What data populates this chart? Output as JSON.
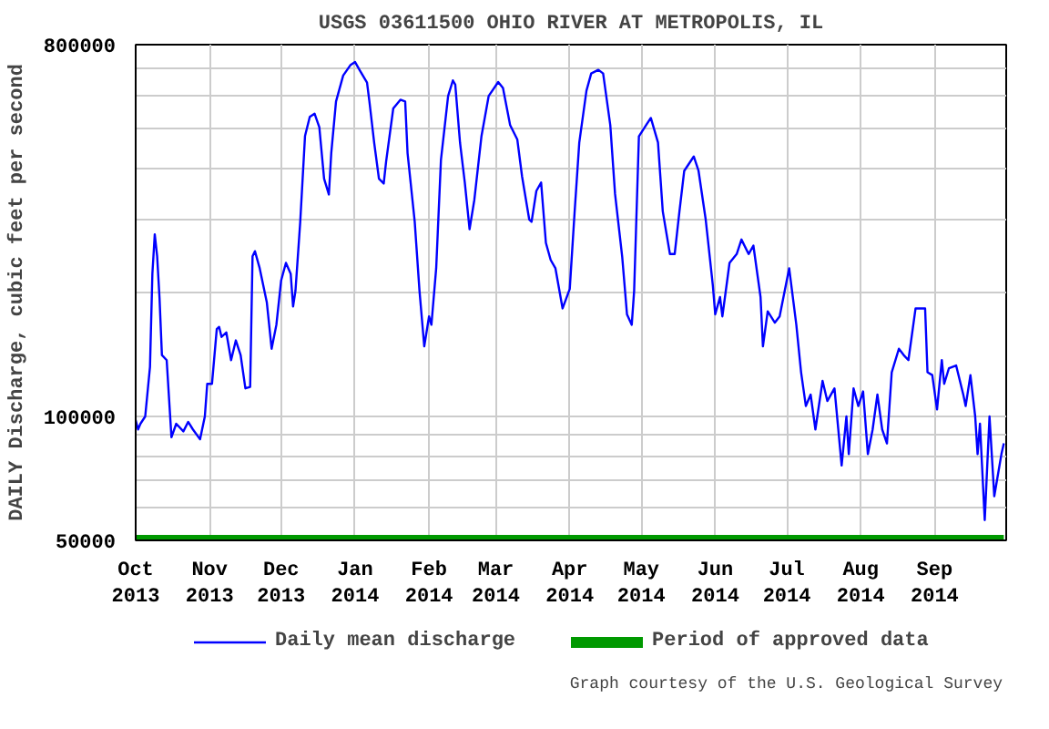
{
  "chart_data": {
    "type": "line",
    "title": "USGS 03611500 OHIO RIVER AT METROPOLIS, IL",
    "ylabel": "DAILY Discharge, cubic feet per second",
    "annotations": [
      "Graph courtesy of the U.S. Geological Survey"
    ],
    "log": "y",
    "grid": true,
    "legend": "bottom",
    "marker": "none",
    "line_style": "solid",
    "xlim": [
      "2013-10-01",
      "2014-10-01"
    ],
    "xticks": [
      {
        "value": "2013-10-01",
        "label": "Oct\n2013"
      },
      {
        "value": "2013-11-01",
        "label": "Nov\n2013"
      },
      {
        "value": "2013-12-01",
        "label": "Dec\n2013"
      },
      {
        "value": "2014-01-01",
        "label": "Jan\n2014"
      },
      {
        "value": "2014-02-01",
        "label": "Feb\n2014"
      },
      {
        "value": "2014-03-01",
        "label": "Mar\n2014"
      },
      {
        "value": "2014-04-01",
        "label": "Apr\n2014"
      },
      {
        "value": "2014-05-01",
        "label": "May\n2014"
      },
      {
        "value": "2014-06-01",
        "label": "Jun\n2014"
      },
      {
        "value": "2014-07-01",
        "label": "Jul\n2014"
      },
      {
        "value": "2014-08-01",
        "label": "Aug\n2014"
      },
      {
        "value": "2014-09-01",
        "label": "Sep\n2014"
      }
    ],
    "ylim": [
      50000,
      800000
    ],
    "yticks": [
      50000,
      {
        "value": 60000,
        "label": null
      },
      {
        "value": 70000,
        "label": null
      },
      {
        "value": 80000,
        "label": null
      },
      {
        "value": 90000,
        "label": null
      },
      100000,
      {
        "value": 200000,
        "label": null
      },
      {
        "value": 300000,
        "label": null
      },
      {
        "value": 400000,
        "label": null
      },
      {
        "value": 500000,
        "label": null
      },
      {
        "value": 600000,
        "label": null
      },
      {
        "value": 700000,
        "label": null
      },
      800000
    ],
    "series": [
      {
        "name": "Daily mean discharge",
        "color": "#0000ff",
        "x": [
          "2013-10-01",
          "2013-10-02",
          "2013-10-03",
          "2013-10-05",
          "2013-10-07",
          "2013-10-08",
          "2013-10-09",
          "2013-10-10",
          "2013-10-11",
          "2013-10-12",
          "2013-10-14",
          "2013-10-16",
          "2013-10-18",
          "2013-10-21",
          "2013-10-23",
          "2013-10-25",
          "2013-10-28",
          "2013-10-30",
          "2013-10-31",
          "2013-11-02",
          "2013-11-04",
          "2013-11-05",
          "2013-11-06",
          "2013-11-08",
          "2013-11-10",
          "2013-11-12",
          "2013-11-14",
          "2013-11-16",
          "2013-11-18",
          "2013-11-19",
          "2013-11-20",
          "2013-11-22",
          "2013-11-25",
          "2013-11-27",
          "2013-11-29",
          "2013-12-01",
          "2013-12-03",
          "2013-12-05",
          "2013-12-06",
          "2013-12-07",
          "2013-12-09",
          "2013-12-11",
          "2013-12-13",
          "2013-12-15",
          "2013-12-17",
          "2013-12-19",
          "2013-12-21",
          "2013-12-22",
          "2013-12-24",
          "2013-12-27",
          "2013-12-30",
          "2014-01-01",
          "2014-01-03",
          "2014-01-06",
          "2014-01-07",
          "2014-01-09",
          "2014-01-11",
          "2014-01-13",
          "2014-01-14",
          "2014-01-17",
          "2014-01-20",
          "2014-01-22",
          "2014-01-23",
          "2014-01-26",
          "2014-01-28",
          "2014-01-30",
          "2014-02-01",
          "2014-02-02",
          "2014-02-04",
          "2014-02-06",
          "2014-02-09",
          "2014-02-11",
          "2014-02-12",
          "2014-02-14",
          "2014-02-16",
          "2014-02-18",
          "2014-02-20",
          "2014-02-23",
          "2014-02-26",
          "2014-03-02",
          "2014-03-04",
          "2014-03-07",
          "2014-03-10",
          "2014-03-12",
          "2014-03-15",
          "2014-03-16",
          "2014-03-18",
          "2014-03-20",
          "2014-03-22",
          "2014-03-24",
          "2014-03-26",
          "2014-03-29",
          "2014-04-01",
          "2014-04-03",
          "2014-04-05",
          "2014-04-08",
          "2014-04-10",
          "2014-04-13",
          "2014-04-15",
          "2014-04-18",
          "2014-04-20",
          "2014-04-23",
          "2014-04-25",
          "2014-04-27",
          "2014-04-28",
          "2014-04-30",
          "2014-05-03",
          "2014-05-05",
          "2014-05-08",
          "2014-05-10",
          "2014-05-13",
          "2014-05-15",
          "2014-05-17",
          "2014-05-19",
          "2014-05-23",
          "2014-05-25",
          "2014-05-28",
          "2014-05-31",
          "2014-06-01",
          "2014-06-03",
          "2014-06-04",
          "2014-06-07",
          "2014-06-10",
          "2014-06-12",
          "2014-06-15",
          "2014-06-17",
          "2014-06-20",
          "2014-06-21",
          "2014-06-23",
          "2014-06-26",
          "2014-06-28",
          "2014-07-02",
          "2014-07-05",
          "2014-07-07",
          "2014-07-09",
          "2014-07-11",
          "2014-07-13",
          "2014-07-16",
          "2014-07-18",
          "2014-07-21",
          "2014-07-24",
          "2014-07-26",
          "2014-07-27",
          "2014-07-29",
          "2014-07-31",
          "2014-08-02",
          "2014-08-04",
          "2014-08-06",
          "2014-08-08",
          "2014-08-10",
          "2014-08-12",
          "2014-08-14",
          "2014-08-17",
          "2014-08-19",
          "2014-08-21",
          "2014-08-24",
          "2014-08-28",
          "2014-08-29",
          "2014-08-31",
          "2014-09-02",
          "2014-09-04",
          "2014-09-05",
          "2014-09-07",
          "2014-09-10",
          "2014-09-13",
          "2014-09-14",
          "2014-09-16",
          "2014-09-18",
          "2014-09-19",
          "2014-09-20",
          "2014-09-22",
          "2014-09-24",
          "2014-09-26",
          "2014-09-29",
          "2014-09-30"
        ],
        "values": [
          98000,
          93000,
          96000,
          100000,
          132000,
          222000,
          277000,
          245000,
          194000,
          141000,
          137000,
          89000,
          96000,
          92000,
          97000,
          93000,
          88000,
          100000,
          120000,
          120000,
          163000,
          165000,
          156000,
          160000,
          137000,
          153000,
          141000,
          117000,
          118000,
          245000,
          252000,
          229000,
          189000,
          146000,
          167000,
          214000,
          236000,
          222000,
          185000,
          202000,
          297000,
          480000,
          534000,
          544000,
          504000,
          378000,
          346000,
          436000,
          582000,
          673000,
          713000,
          726000,
          692000,
          647000,
          582000,
          462000,
          378000,
          368000,
          416000,
          560000,
          588000,
          582000,
          436000,
          297000,
          202000,
          148000,
          175000,
          167000,
          229000,
          420000,
          600000,
          655000,
          640000,
          462000,
          370000,
          285000,
          336000,
          480000,
          600000,
          649000,
          628000,
          510000,
          471000,
          383000,
          301000,
          297000,
          353000,
          370000,
          264000,
          240000,
          229000,
          183000,
          204000,
          311000,
          463000,
          618000,
          681000,
          695000,
          681000,
          510000,
          347000,
          244000,
          177000,
          167000,
          202000,
          479000,
          510000,
          531000,
          463000,
          315000,
          248000,
          248000,
          315000,
          395000,
          428000,
          395000,
          301000,
          208000,
          177000,
          195000,
          175000,
          236000,
          248000,
          269000,
          248000,
          260000,
          195000,
          148000,
          180000,
          169000,
          175000,
          229000,
          167000,
          128000,
          106000,
          113000,
          93000,
          122000,
          109000,
          117000,
          76000,
          100000,
          81000,
          117000,
          106000,
          115000,
          81000,
          93000,
          113000,
          93000,
          86000,
          128000,
          146000,
          141000,
          137000,
          183000,
          183000,
          128000,
          126000,
          104000,
          137000,
          120000,
          131000,
          133000,
          113000,
          106000,
          126000,
          100000,
          81000,
          96000,
          56000,
          100000,
          64000,
          81000,
          86000
        ]
      },
      {
        "name": "Period of approved data",
        "color": "#009900",
        "x": [
          "2013-10-01",
          "2014-09-30"
        ],
        "values": [
          50000,
          50000
        ]
      }
    ]
  }
}
